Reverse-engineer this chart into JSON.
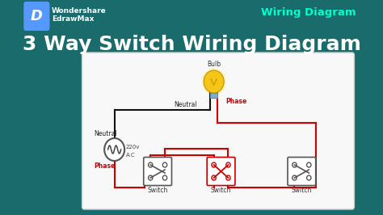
{
  "bg_color": "#1a6b6b",
  "title": "3 Way Switch Wiring Diagram",
  "title_color": "#ffffff",
  "title_fontsize": 18,
  "brand_color": "#ffffff",
  "wiring_diagram_label": "Wiring Diagram",
  "wiring_diagram_color": "#00ffcc",
  "neutral_color": "#222222",
  "phase_color": "#cc0000",
  "wire_neutral_color": "#111111",
  "wire_phase_color": "#cc0000",
  "bulb_color": "#f5c518",
  "bulb_highlight": "#ffe066",
  "logo_bg": "#5599ff",
  "neutral_label": "Neutral",
  "phase_label": "Phase",
  "bulb_label": "Bulb",
  "switch_label": "Switch",
  "ac_label": "220v\nA.C",
  "grid_color": "#1d7575",
  "diag_edge_color": "#cccccc",
  "diag_face_color": "#f8f8f8"
}
